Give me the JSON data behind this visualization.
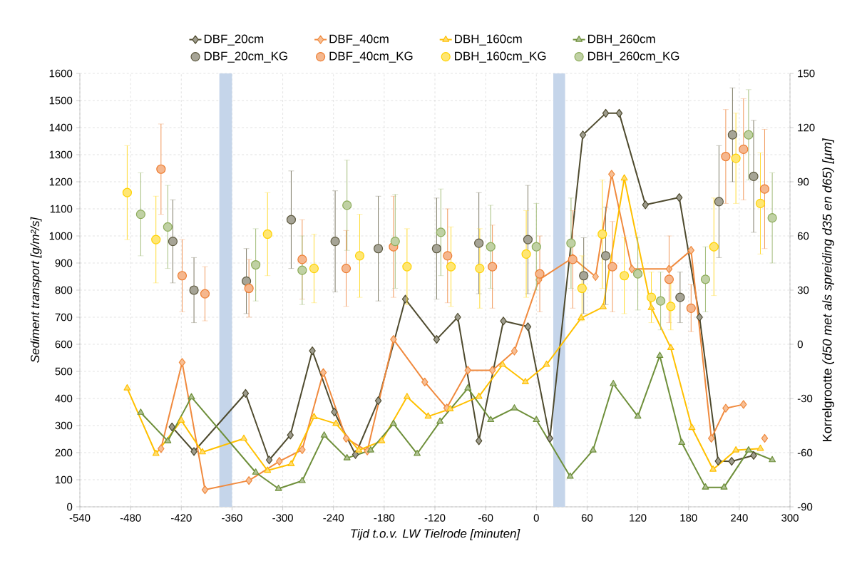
{
  "chart_data": {
    "type": "line",
    "xlabel": "Tijd t.o.v. LW Tielrode [minuten]",
    "ylabel": "Sediment transport [g/m²/s]",
    "y2label": "Korrelgrootte *(d50 met als spreiding d35 en d65) [µm]*",
    "xlim": [
      -540,
      300
    ],
    "xticks": [
      -540,
      -480,
      -420,
      -360,
      -300,
      -240,
      -180,
      -120,
      -60,
      0,
      60,
      120,
      180,
      240,
      300
    ],
    "ylim": [
      0,
      1600
    ],
    "yticks": [
      0,
      100,
      200,
      300,
      400,
      500,
      600,
      700,
      800,
      900,
      1000,
      1100,
      1200,
      1300,
      1400,
      1500,
      1600
    ],
    "y2lim": [
      -90,
      150
    ],
    "y2ticks": [
      -90,
      -60,
      -30,
      0,
      30,
      60,
      90,
      120,
      150
    ],
    "grid": true,
    "legend": "top",
    "line_style": "solid",
    "bands": [
      {
        "axis": "x",
        "from": -375,
        "to": -360,
        "color": "#c5d5ea"
      },
      {
        "axis": "x",
        "from": 20,
        "to": 34,
        "color": "#c5d5ea"
      }
    ],
    "series": [
      {
        "name": "DBF_20cm",
        "type": "line",
        "marker": "diamond",
        "color": "#4f4b2f",
        "x": [
          -431,
          -405,
          -344,
          -316,
          -291,
          -265,
          -239,
          -214,
          -187,
          -155,
          -118,
          -93,
          -68,
          -39,
          -10,
          16,
          55,
          82,
          98,
          129,
          169,
          193,
          215,
          231,
          257
        ],
        "values": [
          295,
          204,
          419,
          173,
          265,
          576,
          350,
          193,
          392,
          767,
          618,
          700,
          244,
          686,
          665,
          253,
          1373,
          1453,
          1453,
          1115,
          1142,
          700,
          169,
          168,
          190
        ]
      },
      {
        "name": "DBF_40cm",
        "type": "line",
        "marker": "diamond",
        "color": "#f08a3e",
        "x": [
          -444,
          -419,
          -392,
          -340,
          -304,
          -277,
          -252,
          -225,
          -200,
          -169,
          -132,
          -106,
          -81,
          -52,
          -26,
          3,
          43,
          70,
          89,
          113,
          157,
          183,
          207,
          224,
          245,
          257,
          270
        ],
        "values": [
          215,
          533,
          63,
          97,
          168,
          211,
          496,
          253,
          206,
          618,
          461,
          365,
          504,
          504,
          575,
          838,
          919,
          850,
          1228,
          878,
          878,
          947,
          253,
          364,
          378,
          null,
          253
        ]
      },
      {
        "name": "DBH_160cm",
        "type": "line",
        "marker": "triangle",
        "color": "#ffc000",
        "x": [
          -484,
          -450,
          -420,
          -395,
          -346,
          -318,
          -290,
          -263,
          -237,
          -210,
          -183,
          -153,
          -128,
          -102,
          -68,
          -40,
          -13,
          12,
          53,
          79,
          104,
          136,
          159,
          184,
          209,
          236,
          265
        ],
        "values": [
          438,
          196,
          319,
          202,
          252,
          134,
          158,
          332,
          307,
          209,
          243,
          406,
          334,
          361,
          407,
          525,
          461,
          525,
          697,
          738,
          1213,
          735,
          587,
          292,
          138,
          209,
          215
        ]
      },
      {
        "name": "DBH_260cm",
        "type": "line",
        "marker": "triangle",
        "color": "#6e8f3a",
        "x": [
          -468,
          -436,
          -408,
          -332,
          -305,
          -277,
          -251,
          -224,
          -196,
          -169,
          -141,
          -114,
          -81,
          -54,
          -26,
          0,
          40,
          67,
          91,
          120,
          146,
          172,
          200,
          222,
          251,
          279
        ],
        "values": [
          348,
          243,
          405,
          127,
          67,
          96,
          264,
          180,
          209,
          307,
          196,
          315,
          438,
          321,
          364,
          321,
          112,
          209,
          454,
          334,
          558,
          237,
          72,
          72,
          209,
          173
        ]
      },
      {
        "name": "DBF_20cm_KG",
        "type": "scatter",
        "axis": "y2",
        "marker": "circle",
        "color": "#5e5a40",
        "x": [
          -430,
          -405,
          -343,
          -290,
          -238,
          -187,
          -118,
          -68,
          -10,
          56,
          82,
          170,
          216,
          232,
          257
        ],
        "values": [
          57,
          30,
          35,
          69,
          57,
          53,
          53,
          56,
          58,
          38,
          49,
          26,
          79,
          116,
          93
        ],
        "errors": [
          23,
          18,
          18,
          27,
          28,
          29,
          28,
          28,
          30,
          21,
          27,
          14,
          31,
          26,
          31
        ]
      },
      {
        "name": "DBF_40cm_KG",
        "type": "scatter",
        "axis": "y2",
        "marker": "circle",
        "color": "#ed7d31",
        "x": [
          -444,
          -419,
          -392,
          -340,
          -277,
          -225,
          -169,
          -105,
          -52,
          4,
          43,
          90,
          157,
          183,
          224,
          245,
          270
        ],
        "values": [
          97,
          38,
          28,
          31,
          47,
          42,
          54,
          49,
          43,
          39,
          47,
          43,
          36,
          20,
          104,
          108,
          86
        ],
        "errors": [
          25,
          20,
          15,
          16,
          22,
          21,
          28,
          26,
          23,
          21,
          27,
          25,
          24,
          13,
          26,
          28,
          33
        ]
      },
      {
        "name": "DBH_160cm_KG",
        "type": "scatter",
        "axis": "y2",
        "marker": "circle",
        "color": "#ffd200",
        "x": [
          -484,
          -450,
          -318,
          -263,
          -209,
          -153,
          -101,
          -67,
          -12,
          54,
          78,
          104,
          136,
          159,
          210,
          236,
          265
        ],
        "values": [
          84,
          58,
          61,
          42,
          49,
          43,
          43,
          42,
          50,
          31,
          61,
          38,
          26,
          21,
          54,
          103,
          78
        ],
        "errors": [
          26,
          24,
          23,
          19,
          23,
          21,
          22,
          22,
          24,
          18,
          30,
          21,
          14,
          13,
          27,
          25,
          28
        ]
      },
      {
        "name": "DBH_260cm_KG",
        "type": "scatter",
        "axis": "y2",
        "marker": "circle",
        "color": "#8cac5a",
        "x": [
          -468,
          -436,
          -332,
          -277,
          -224,
          -167,
          -113,
          -54,
          0,
          41,
          120,
          147,
          200,
          251,
          279
        ],
        "values": [
          72,
          65,
          44,
          41,
          77,
          57,
          62,
          54,
          54,
          56,
          39,
          24,
          36,
          116,
          70
        ],
        "errors": [
          23,
          23,
          20,
          19,
          25,
          26,
          24,
          23,
          24,
          25,
          20,
          16,
          18,
          25,
          25
        ]
      }
    ]
  }
}
